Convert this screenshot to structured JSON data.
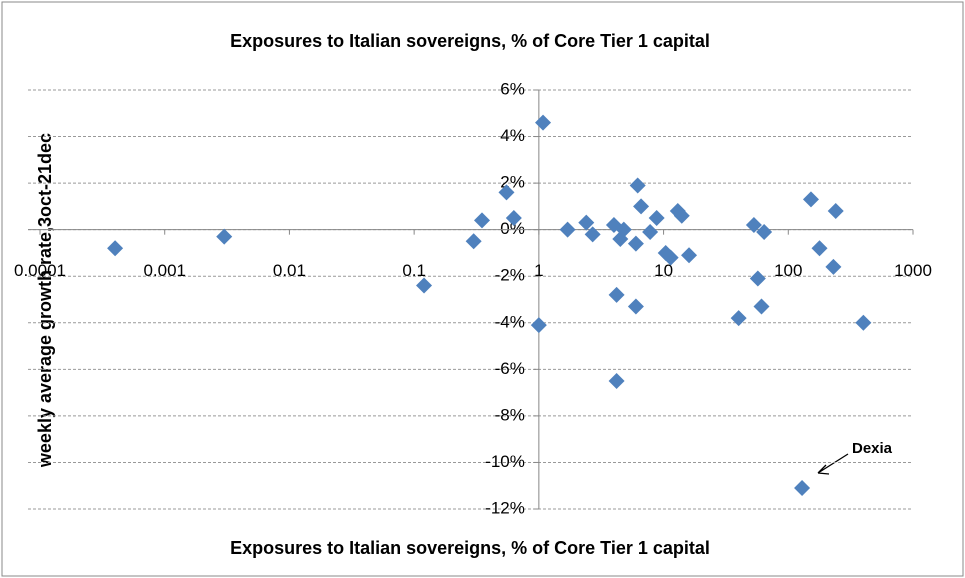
{
  "chart_data": {
    "type": "scatter",
    "title": "Exposures to Italian sovereigns, % of Core Tier 1 capital",
    "x_label": "Exposures to Italian sovereigns, % of Core Tier 1 capital",
    "y_label": "weekly average growth rate,3oct-21dec",
    "x": [
      0.0004,
      0.003,
      0.12,
      0.3,
      0.35,
      0.55,
      0.63,
      1.08,
      1.0,
      1.7,
      2.4,
      2.7,
      4,
      4.2,
      4.5,
      4.8,
      4.2,
      6,
      6,
      6.2,
      6.6,
      7.8,
      8.8,
      10.4,
      11.4,
      13,
      14,
      16,
      40,
      53,
      57,
      61,
      64,
      152,
      178,
      240,
      230,
      400,
      129
    ],
    "series": [
      {
        "color": "#4f81bd",
        "values": [
          -0.8,
          -0.3,
          -2.4,
          -0.5,
          0.4,
          1.6,
          0.5,
          4.6,
          -4.1,
          0,
          0.3,
          -0.2,
          0.2,
          -2.8,
          -0.4,
          0,
          -6.5,
          -0.6,
          -3.3,
          1.9,
          1,
          -0.1,
          0.5,
          -1,
          -1.2,
          0.8,
          0.6,
          -1.1,
          -3.8,
          0.2,
          -2.1,
          -3.3,
          -0.1,
          1.3,
          -0.8,
          0.8,
          -1.6,
          -4.0,
          -11.1
        ]
      }
    ],
    "xlim": [
      0.0001,
      1000
    ],
    "xticks": [
      0.0001,
      0.001,
      0.01,
      0.1,
      1,
      10,
      100,
      1000
    ],
    "xscale": "log",
    "ylim": [
      -12,
      6
    ],
    "yticks": [
      {
        "value": 6,
        "label": "6%"
      },
      {
        "value": 4,
        "label": "4%"
      },
      {
        "value": 2,
        "label": "2%"
      },
      {
        "value": 0,
        "label": "0%"
      },
      {
        "value": -2,
        "label": "-2%"
      },
      {
        "value": -4,
        "label": "-4%"
      },
      {
        "value": -6,
        "label": "-6%"
      },
      {
        "value": -8,
        "label": "-8%"
      },
      {
        "value": -10,
        "label": "-10%"
      },
      {
        "value": -12,
        "label": "-12%"
      }
    ],
    "grid": true,
    "annotation": "Dexia"
  }
}
